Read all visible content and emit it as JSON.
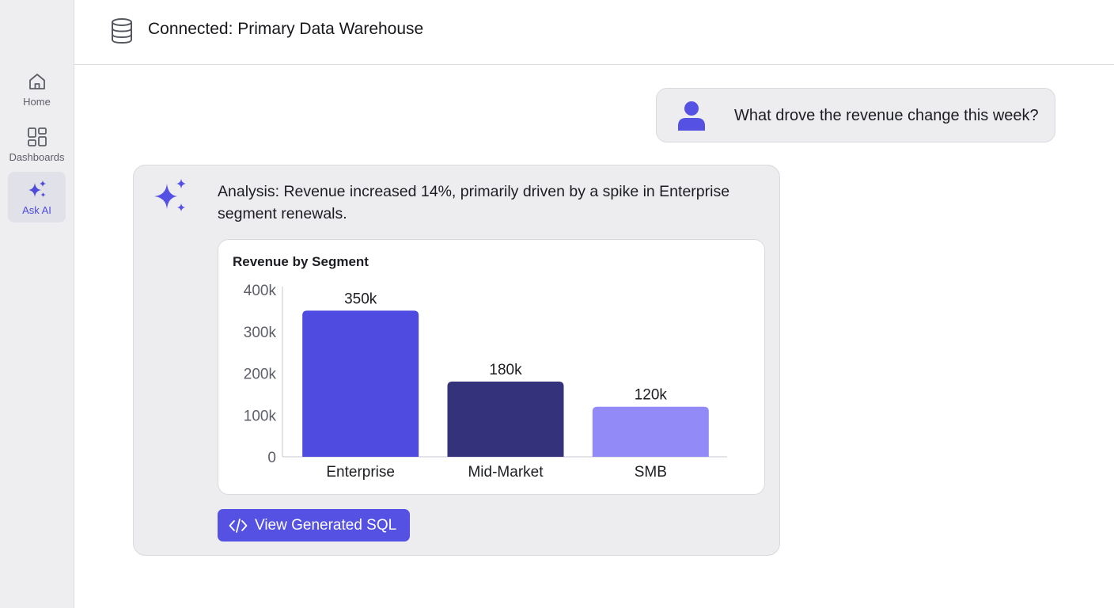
{
  "sidebar": {
    "items": [
      {
        "id": "home",
        "label": "Home",
        "icon": "home-icon",
        "active": false
      },
      {
        "id": "dashboards",
        "label": "Dashboards",
        "icon": "grid-icon",
        "active": false
      },
      {
        "id": "ask",
        "label": "Ask AI",
        "icon": "sparkle-icon",
        "active": true
      }
    ]
  },
  "header": {
    "icon": "database-icon",
    "title": "Connected: Primary Data Warehouse"
  },
  "conversation": {
    "user_message": "What drove the revenue change this week?",
    "ai_response": {
      "analysis": "Analysis: Revenue increased 14%, primarily driven by a spike in Enterprise segment renewals.",
      "sql_button_label": "View Generated SQL"
    }
  },
  "colors": {
    "accent": "#5551e3",
    "bar_enterprise": "#4f4be0",
    "bar_midmarket": "#34327a",
    "bar_smb": "#928af7"
  },
  "chart_data": {
    "type": "bar",
    "title": "Revenue by Segment",
    "categories": [
      "Enterprise",
      "Mid-Market",
      "SMB"
    ],
    "values": [
      350000,
      180000,
      120000
    ],
    "data_labels": [
      "350k",
      "180k",
      "120k"
    ],
    "y_ticks": [
      {
        "value": 0,
        "label": "0"
      },
      {
        "value": 100000,
        "label": "100k"
      },
      {
        "value": 200000,
        "label": "200k"
      },
      {
        "value": 300000,
        "label": "300k"
      },
      {
        "value": 400000,
        "label": "400k"
      }
    ],
    "ylim": [
      0,
      400000
    ],
    "xlabel": "",
    "ylabel": "",
    "grid": false,
    "legend": "none"
  }
}
